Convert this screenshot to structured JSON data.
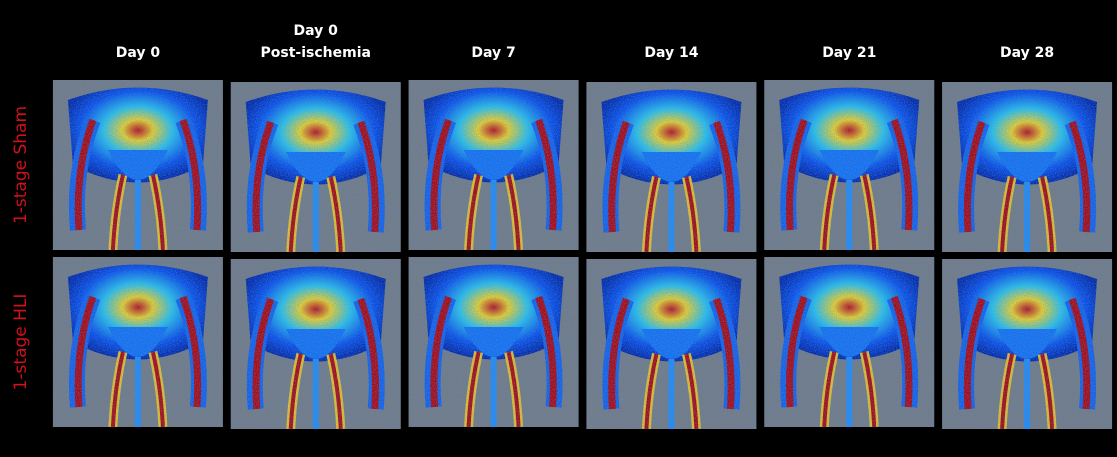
{
  "figure": {
    "columns": [
      [
        "Day 0"
      ],
      [
        "Day 0",
        "Post-ischemia"
      ],
      [
        "Day 7"
      ],
      [
        "Day 14"
      ],
      [
        "Day 21"
      ],
      [
        "Day 28"
      ]
    ],
    "rows": [
      "1-stage Sham",
      "1-stage HLI"
    ]
  }
}
